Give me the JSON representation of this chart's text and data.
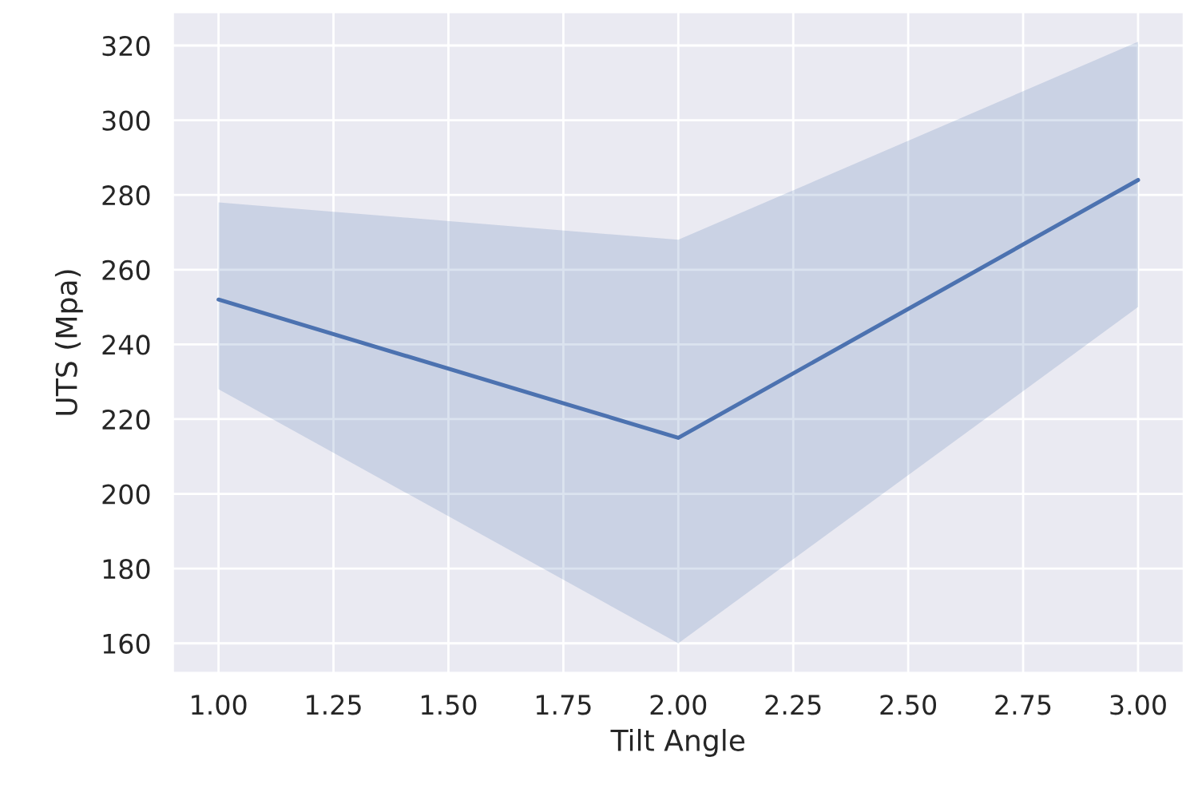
{
  "chart_data": {
    "type": "line",
    "xlabel": "Tilt Angle",
    "ylabel": "UTS (Mpa)",
    "x": [
      1,
      2,
      3
    ],
    "series": [
      {
        "color": "#4c72b0",
        "values": [
          252,
          215,
          284
        ],
        "lower": [
          228,
          160,
          250
        ],
        "upper": [
          278,
          268,
          321
        ]
      }
    ],
    "xlim": [
      0.9,
      3.1
    ],
    "ylim": [
      152,
      329
    ],
    "xticks": [
      {
        "value": 1,
        "label": "1.00"
      },
      {
        "value": 1.25,
        "label": "1.25"
      },
      {
        "value": 1.5,
        "label": "1.50"
      },
      {
        "value": 1.75,
        "label": "1.75"
      },
      {
        "value": 2,
        "label": "2.00"
      },
      {
        "value": 2.25,
        "label": "2.25"
      },
      {
        "value": 2.5,
        "label": "2.50"
      },
      {
        "value": 2.75,
        "label": "2.75"
      },
      {
        "value": 3,
        "label": "3.00"
      }
    ],
    "yticks": [
      160,
      180,
      200,
      220,
      240,
      260,
      280,
      300,
      320
    ],
    "grid": true
  }
}
